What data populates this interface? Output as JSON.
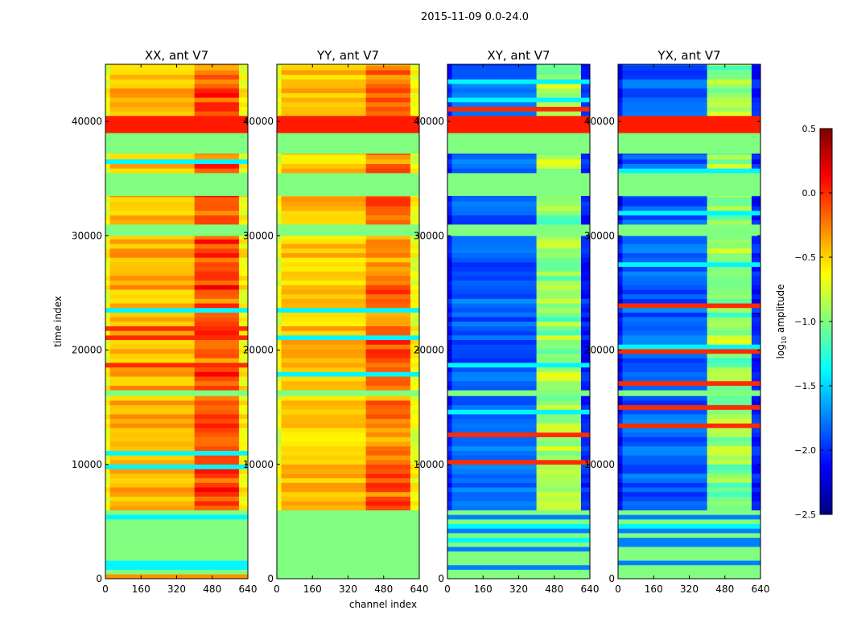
{
  "chart_data": {
    "type": "heatmap",
    "title": "2015-11-09 0.0-24.0",
    "xlabel": "channel index",
    "ylabel": "time index",
    "xlim": [
      0,
      640
    ],
    "ylim": [
      0,
      45000
    ],
    "xticks": [
      "0",
      "160",
      "320",
      "480",
      "640"
    ],
    "xtick_values": [
      0,
      160,
      320,
      480,
      640
    ],
    "yticks": [
      "0",
      "10000",
      "20000",
      "30000",
      "40000"
    ],
    "ytick_values": [
      0,
      10000,
      20000,
      30000,
      40000
    ],
    "colorbar": {
      "label_prefix": "log",
      "label_sub": "10",
      "label_suffix": " amplitude",
      "range": [
        -2.5,
        0.5
      ],
      "ticks": [
        "0.5",
        "0.0",
        "−0.5",
        "−1.0",
        "−1.5",
        "−2.0",
        "−2.5"
      ],
      "tick_values": [
        0.5,
        0.0,
        -0.5,
        -1.0,
        -1.5,
        -2.0,
        -2.5
      ],
      "colormap": "jet"
    },
    "flag_value": -1.0,
    "row_bands": [
      [
        0,
        6000,
        "flagged-striped"
      ],
      [
        6000,
        16000,
        "data"
      ],
      [
        16000,
        16500,
        "flagged"
      ],
      [
        16500,
        30000,
        "data"
      ],
      [
        30000,
        31000,
        "flagged"
      ],
      [
        31000,
        33500,
        "data"
      ],
      [
        33500,
        35500,
        "flagged"
      ],
      [
        35500,
        37200,
        "data"
      ],
      [
        37200,
        39000,
        "flagged"
      ],
      [
        39000,
        40500,
        "orange-band"
      ],
      [
        40500,
        45000,
        "data"
      ]
    ],
    "panels": [
      {
        "title": "XX, ant V7",
        "base": -0.4,
        "hot_channels": [
          400,
          600
        ],
        "hot": -0.1
      },
      {
        "title": "YY, ant V7",
        "base": -0.45,
        "hot_channels": [
          400,
          600
        ],
        "hot": -0.2
      },
      {
        "title": "XY, ant V7",
        "base": -1.85,
        "hot_channels": [
          400,
          600
        ],
        "hot": -0.95
      },
      {
        "title": "YX, ant V7",
        "base": -1.85,
        "hot_channels": [
          400,
          600
        ],
        "hot": -0.95
      }
    ]
  }
}
